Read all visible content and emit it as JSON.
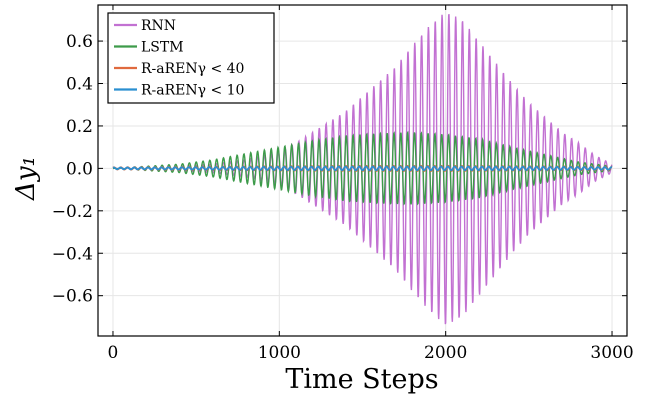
{
  "chart_data": {
    "type": "line",
    "xlabel": "Time Steps",
    "ylabel": "Δy₁",
    "xlim": [
      -90,
      3090
    ],
    "ylim": [
      -0.79,
      0.77
    ],
    "xticks": [
      0,
      1000,
      2000,
      3000
    ],
    "xtick_labels": [
      "0",
      "1000",
      "2000",
      "3000"
    ],
    "yticks": [
      -0.6,
      -0.4,
      -0.2,
      0.0,
      0.2,
      0.4,
      0.6
    ],
    "ytick_labels": [
      "−0.6",
      "−0.4",
      "−0.2",
      "0.0",
      "0.2",
      "0.4",
      "0.6"
    ],
    "grid": true,
    "legend_position": "top-left",
    "series": [
      {
        "name": "RNN",
        "color": "#c271d2",
        "envelope_x": [
          0,
          200,
          400,
          600,
          800,
          1000,
          1100,
          1200,
          1300,
          1400,
          1500,
          1600,
          1700,
          1800,
          1900,
          2000,
          2100,
          2200,
          2300,
          2400,
          2500,
          2600,
          2700,
          2800,
          2900,
          3000
        ],
        "envelope_y": [
          0.0,
          0.005,
          0.01,
          0.02,
          0.04,
          0.08,
          0.12,
          0.17,
          0.22,
          0.27,
          0.34,
          0.41,
          0.48,
          0.58,
          0.67,
          0.74,
          0.7,
          0.6,
          0.5,
          0.4,
          0.31,
          0.24,
          0.17,
          0.12,
          0.06,
          0.02
        ],
        "period": 41
      },
      {
        "name": "LSTM",
        "color": "#3d9b4a",
        "envelope_x": [
          0,
          200,
          400,
          600,
          800,
          1000,
          1200,
          1400,
          1600,
          1800,
          2000,
          2200,
          2400,
          2600,
          2800,
          3000
        ],
        "envelope_y": [
          0.0,
          0.01,
          0.02,
          0.04,
          0.07,
          0.1,
          0.13,
          0.155,
          0.165,
          0.17,
          0.16,
          0.14,
          0.1,
          0.065,
          0.03,
          0.01
        ],
        "period": 41
      },
      {
        "name": "R-aRENγ < 40",
        "color": "#e06a3e",
        "envelope_x": [
          0,
          500,
          1000,
          1500,
          2000,
          2500,
          3000
        ],
        "envelope_y": [
          0.005,
          0.008,
          0.01,
          0.012,
          0.012,
          0.01,
          0.008
        ],
        "period": 41
      },
      {
        "name": "R-aRENγ < 10",
        "color": "#2a8fd0",
        "envelope_x": [
          0,
          500,
          1000,
          1500,
          2000,
          2500,
          3000
        ],
        "envelope_y": [
          0.004,
          0.006,
          0.008,
          0.009,
          0.009,
          0.008,
          0.006
        ],
        "period": 41
      }
    ]
  }
}
